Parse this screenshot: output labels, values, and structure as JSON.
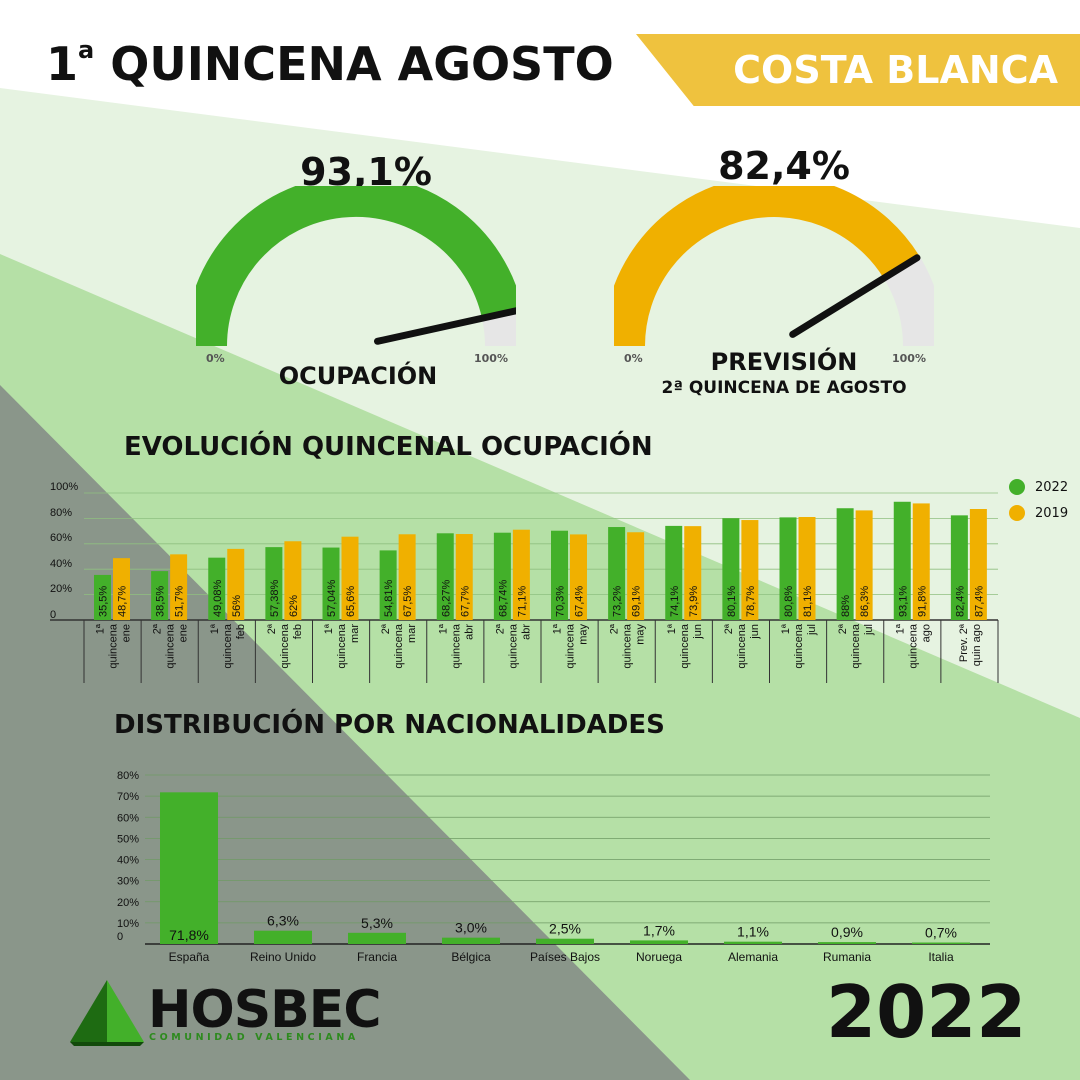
{
  "header": {
    "title_ordinal": "1",
    "title_sup": "a",
    "title_rest": "QUINCENA AGOSTO",
    "region": "COSTA BLANCA"
  },
  "gauges": [
    {
      "value_label": "93,1%",
      "value": 93.1,
      "min_label": "0%",
      "max_label": "100%",
      "label": "OCUPACIÓN",
      "sub": "",
      "color": "#43b02a"
    },
    {
      "value_label": "82,4%",
      "value": 82.4,
      "min_label": "0%",
      "max_label": "100%",
      "label": "PREVISIÓN",
      "sub": "2ª QUINCENA DE AGOSTO",
      "color": "#f0b000"
    }
  ],
  "evolution": {
    "title": "EVOLUCIÓN QUINCENAL OCUPACIÓN"
  },
  "nationalities": {
    "title": "DISTRIBUCIÓN POR NACIONALIDADES"
  },
  "footer": {
    "logo": "HOSBEC",
    "logo_sub": "COMUNIDAD VALENCIANA",
    "year": "2022"
  },
  "colors": {
    "green": "#43b02a",
    "yellow": "#f0b000",
    "banner": "#efc23e"
  },
  "chart_data": [
    {
      "type": "bar",
      "title": "EVOLUCIÓN QUINCENAL OCUPACIÓN",
      "categories": [
        "1ª quincena ene",
        "2ª quincena ene",
        "1ª quincena feb",
        "2ª quincena feb",
        "1ª quincena mar",
        "2ª quincena mar",
        "1ª quincena abr",
        "2ª quincena abr",
        "1ª quincena may",
        "2ª quincena may",
        "1ª quincena jun",
        "2ª quincena jun",
        "1ª quincena jul",
        "2ª quincena jul",
        "1ª quincena ago",
        "Prev. 2ª quin ago"
      ],
      "category_lines": [
        [
          "1ª",
          "quincena",
          "ene"
        ],
        [
          "2ª",
          "quincena",
          "ene"
        ],
        [
          "1ª",
          "quincena",
          "feb"
        ],
        [
          "2ª",
          "quincena",
          "feb"
        ],
        [
          "1ª",
          "quincena",
          "mar"
        ],
        [
          "2ª",
          "quincena",
          "mar"
        ],
        [
          "1ª",
          "quincena",
          "abr"
        ],
        [
          "2ª",
          "quincena",
          "abr"
        ],
        [
          "1ª",
          "quincena",
          "may"
        ],
        [
          "2ª",
          "quincena",
          "may"
        ],
        [
          "1ª",
          "quincena",
          "jun"
        ],
        [
          "2ª",
          "quincena",
          "jun"
        ],
        [
          "1ª",
          "quincena",
          "jul"
        ],
        [
          "2ª",
          "quincena",
          "jul"
        ],
        [
          "1ª",
          "quincena",
          "ago"
        ],
        [
          "Prev. 2ª",
          "quin ago"
        ]
      ],
      "series": [
        {
          "name": "2022",
          "color": "#43b02a",
          "values": [
            35.5,
            38.5,
            49.08,
            57.38,
            57.04,
            54.81,
            68.27,
            68.74,
            70.3,
            73.2,
            74.1,
            80.1,
            80.8,
            88,
            93.1,
            82.4
          ],
          "labels": [
            "35,5%",
            "38,5%",
            "49,08%",
            "57,38%",
            "57,04%",
            "54,81%",
            "68,27%",
            "68,74%",
            "70,3%",
            "73,2%",
            "74,1%",
            "80,1%",
            "80,8%",
            "88%",
            "93,1%",
            "82,4%"
          ]
        },
        {
          "name": "2019",
          "color": "#f0b000",
          "values": [
            48.7,
            51.7,
            56,
            62,
            65.6,
            67.5,
            67.7,
            71.1,
            67.4,
            69.1,
            73.9,
            78.7,
            81.1,
            86.3,
            91.8,
            87.4
          ],
          "labels": [
            "48,7%",
            "51,7%",
            "56%",
            "62%",
            "65,6%",
            "67,5%",
            "67,7%",
            "71,1%",
            "67,4%",
            "69,1%",
            "73,9%",
            "78,7%",
            "81,1%",
            "86,3%",
            "91,8%",
            "87,4%"
          ]
        }
      ],
      "yticks": [
        "0",
        "20%",
        "40%",
        "60%",
        "80%",
        "100%"
      ],
      "ylim": [
        0,
        100
      ],
      "legend": "right"
    },
    {
      "type": "bar",
      "title": "DISTRIBUCIÓN POR NACIONALIDADES",
      "categories": [
        "España",
        "Reino Unido",
        "Francia",
        "Bélgica",
        "Países Bajos",
        "Noruega",
        "Alemania",
        "Rumania",
        "Italia"
      ],
      "values": [
        71.8,
        6.3,
        5.3,
        3.0,
        2.5,
        1.7,
        1.1,
        0.9,
        0.7
      ],
      "labels": [
        "71,8%",
        "6,3%",
        "5,3%",
        "3,0%",
        "2,5%",
        "1,7%",
        "1,1%",
        "0,9%",
        "0,7%"
      ],
      "color": "#43b02a",
      "yticks": [
        "0",
        "10%",
        "20%",
        "30%",
        "40%",
        "50%",
        "60%",
        "70%",
        "80%"
      ],
      "ylim": [
        0,
        80
      ]
    }
  ]
}
